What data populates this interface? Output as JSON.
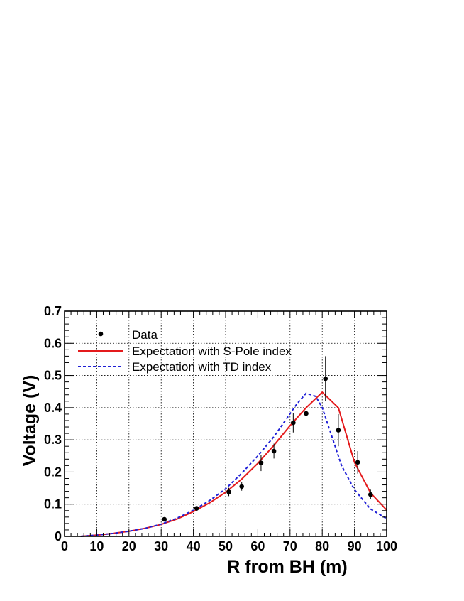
{
  "chart_data": {
    "type": "scatter",
    "xlabel": "R from BH (m)",
    "ylabel": "Voltage (V)",
    "xlim": [
      0,
      100
    ],
    "ylim": [
      0,
      0.7
    ],
    "x_ticks": [
      0,
      10,
      20,
      30,
      40,
      50,
      60,
      70,
      80,
      90,
      100
    ],
    "y_ticks": [
      0,
      0.1,
      0.2,
      0.3,
      0.4,
      0.5,
      0.6,
      0.7
    ],
    "x_tick_labels": [
      "0",
      "10",
      "20",
      "30",
      "40",
      "50",
      "60",
      "70",
      "80",
      "90",
      "100"
    ],
    "y_tick_labels": [
      "0",
      "0.1",
      "0.2",
      "0.3",
      "0.4",
      "0.5",
      "0.6",
      "0.7"
    ],
    "grid": true,
    "legend_position": "top-left",
    "series": [
      {
        "name": "Data",
        "kind": "points",
        "color": "#000000",
        "x": [
          31,
          41,
          51,
          55,
          61,
          65,
          71,
          75,
          81,
          85,
          91,
          95
        ],
        "y": [
          0.053,
          0.087,
          0.138,
          0.155,
          0.228,
          0.265,
          0.353,
          0.382,
          0.49,
          0.33,
          0.23,
          0.13
        ],
        "err": [
          0.004,
          0.006,
          0.013,
          0.013,
          0.025,
          0.023,
          0.03,
          0.035,
          0.07,
          0.05,
          0.035,
          0.015
        ]
      },
      {
        "name": "Expectation with S-Pole index",
        "kind": "line",
        "color": "#e41a1c",
        "x": [
          5,
          10,
          15,
          20,
          25,
          30,
          35,
          40,
          45,
          50,
          55,
          60,
          65,
          70,
          75,
          80,
          85,
          90,
          95,
          100
        ],
        "y": [
          0.0,
          0.004,
          0.009,
          0.016,
          0.025,
          0.037,
          0.054,
          0.077,
          0.104,
          0.137,
          0.178,
          0.227,
          0.283,
          0.344,
          0.4,
          0.448,
          0.4,
          0.23,
          0.135,
          0.082
        ]
      },
      {
        "name": "Expectation with TD index",
        "kind": "dashed-line",
        "color": "#1f1fd6",
        "x": [
          5,
          10,
          15,
          20,
          25,
          30,
          35,
          40,
          45,
          50,
          55,
          60,
          65,
          70,
          72,
          75,
          78,
          80,
          83,
          86,
          90,
          95,
          100
        ],
        "y": [
          0.0,
          0.004,
          0.009,
          0.016,
          0.025,
          0.038,
          0.057,
          0.081,
          0.111,
          0.148,
          0.196,
          0.25,
          0.31,
          0.381,
          0.41,
          0.445,
          0.435,
          0.4,
          0.31,
          0.22,
          0.145,
          0.085,
          0.055
        ]
      }
    ]
  }
}
